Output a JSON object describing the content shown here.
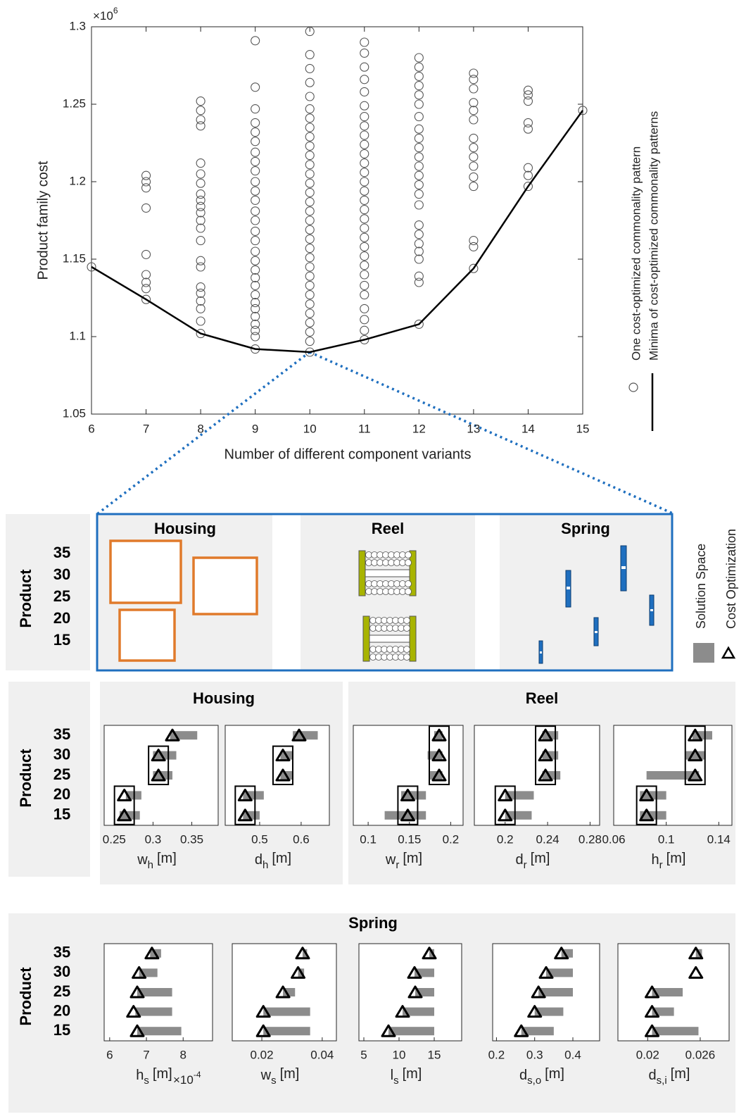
{
  "chart_data": {
    "type": "scatter",
    "x_label": "Number of different component variants",
    "y_label": "Product family cost",
    "y_scale_label": "×10",
    "y_scale_exponent": "6",
    "xlim": [
      6,
      15
    ],
    "xticks": [
      6,
      7,
      8,
      9,
      10,
      11,
      12,
      13,
      14,
      15
    ],
    "ylim": [
      1.05,
      1.3
    ],
    "yticks": [
      1.05,
      1.1,
      1.15,
      1.2,
      1.25,
      1.3
    ],
    "series": [
      {
        "name": "One cost-optimized commonality pattern",
        "type": "scatter",
        "color": "#555555",
        "x": [
          6,
          7,
          7,
          7,
          7,
          7,
          7,
          7,
          7,
          7,
          8,
          8,
          8,
          8,
          8,
          8,
          8,
          8,
          8,
          8,
          8,
          8,
          8,
          8,
          8,
          8,
          8,
          8,
          8,
          8,
          8,
          8,
          9,
          9,
          9,
          9,
          9,
          9,
          9,
          9,
          9,
          9,
          9,
          9,
          9,
          9,
          9,
          9,
          9,
          9,
          9,
          9,
          9,
          9,
          9,
          9,
          9,
          9,
          9,
          9,
          9,
          10,
          10,
          10,
          10,
          10,
          10,
          10,
          10,
          10,
          10,
          10,
          10,
          10,
          10,
          10,
          10,
          10,
          10,
          10,
          10,
          10,
          10,
          10,
          10,
          10,
          10,
          10,
          10,
          10,
          10,
          10,
          10,
          11,
          11,
          11,
          11,
          11,
          11,
          11,
          11,
          11,
          11,
          11,
          11,
          11,
          11,
          11,
          11,
          11,
          11,
          11,
          11,
          11,
          11,
          11,
          11,
          11,
          11,
          11,
          11,
          11,
          11,
          12,
          12,
          12,
          12,
          12,
          12,
          12,
          12,
          12,
          12,
          12,
          12,
          12,
          12,
          12,
          12,
          12,
          12,
          12,
          12,
          12,
          12,
          12,
          12,
          13,
          13,
          13,
          13,
          13,
          13,
          13,
          13,
          13,
          13,
          13,
          13,
          13,
          13,
          13,
          14,
          14,
          14,
          14,
          14,
          14,
          14,
          14,
          15
        ],
        "values": [
          1.145,
          1.124,
          1.131,
          1.135,
          1.14,
          1.153,
          1.183,
          1.196,
          1.2,
          1.204,
          1.102,
          1.11,
          1.118,
          1.123,
          1.128,
          1.132,
          1.145,
          1.149,
          1.162,
          1.17,
          1.175,
          1.18,
          1.184,
          1.188,
          1.192,
          1.199,
          1.205,
          1.212,
          1.236,
          1.24,
          1.246,
          1.252,
          1.092,
          1.1,
          1.104,
          1.108,
          1.113,
          1.118,
          1.122,
          1.127,
          1.133,
          1.138,
          1.143,
          1.149,
          1.155,
          1.162,
          1.168,
          1.175,
          1.181,
          1.188,
          1.194,
          1.2,
          1.207,
          1.213,
          1.219,
          1.226,
          1.232,
          1.238,
          1.247,
          1.261,
          1.291,
          1.09,
          1.097,
          1.103,
          1.109,
          1.115,
          1.121,
          1.127,
          1.133,
          1.139,
          1.145,
          1.151,
          1.157,
          1.163,
          1.169,
          1.175,
          1.181,
          1.187,
          1.193,
          1.199,
          1.205,
          1.211,
          1.217,
          1.223,
          1.229,
          1.235,
          1.241,
          1.247,
          1.255,
          1.264,
          1.273,
          1.282,
          1.297,
          1.098,
          1.104,
          1.111,
          1.118,
          1.127,
          1.133,
          1.14,
          1.146,
          1.152,
          1.158,
          1.164,
          1.17,
          1.176,
          1.182,
          1.188,
          1.194,
          1.2,
          1.206,
          1.212,
          1.218,
          1.224,
          1.23,
          1.236,
          1.242,
          1.249,
          1.258,
          1.266,
          1.274,
          1.283,
          1.29,
          1.108,
          1.135,
          1.139,
          1.15,
          1.155,
          1.16,
          1.166,
          1.172,
          1.185,
          1.192,
          1.198,
          1.204,
          1.21,
          1.216,
          1.222,
          1.228,
          1.234,
          1.242,
          1.25,
          1.256,
          1.262,
          1.268,
          1.274,
          1.28,
          1.144,
          1.158,
          1.162,
          1.197,
          1.203,
          1.21,
          1.216,
          1.222,
          1.228,
          1.24,
          1.246,
          1.251,
          1.26,
          1.266,
          1.27,
          1.197,
          1.204,
          1.209,
          1.234,
          1.238,
          1.252,
          1.256,
          1.259,
          1.246
        ]
      },
      {
        "name": "Minima of cost-optimized commonality patterns",
        "type": "line",
        "color": "#000000",
        "x": [
          6,
          7,
          8,
          9,
          10,
          11,
          12,
          13,
          14,
          15
        ],
        "values": [
          1.145,
          1.124,
          1.102,
          1.092,
          1.09,
          1.098,
          1.108,
          1.144,
          1.197,
          1.246
        ]
      }
    ]
  },
  "diagram": {
    "y_label": "Product",
    "categories": [
      15,
      20,
      25,
      30,
      35
    ],
    "components": [
      "Housing",
      "Reel",
      "Spring"
    ]
  },
  "range_legend": [
    {
      "name": "Solution Space",
      "color": "#8c8c8c"
    },
    {
      "name": "Cost Optimization",
      "marker": "triangle"
    }
  ],
  "rows": [
    {
      "y_label": "Product",
      "categories": [
        15,
        20,
        25,
        30,
        35
      ],
      "groups": [
        {
          "title": "Housing",
          "charts": [
            {
              "type": "range",
              "x_label": "w",
              "x_label_subscript": "h",
              "x_label_unit": "[m]",
              "xlim": [
                0.237,
                0.384
              ],
              "xticks": [
                0.25,
                0.3,
                0.35
              ],
              "commonality_boxes": true,
              "values": [
                0.263,
                0.263,
                0.307,
                0.307,
                0.325
              ],
              "ranges": [
                [
                  0.257,
                  0.283
                ],
                [
                  0.265,
                  0.285
                ],
                [
                  0.3,
                  0.325
                ],
                [
                  0.3,
                  0.33
                ],
                [
                  0.322,
                  0.357
                ]
              ]
            },
            {
              "type": "range",
              "x_label": "d",
              "x_label_subscript": "h",
              "x_label_unit": "[m]",
              "xlim": [
                0.417,
                0.668
              ],
              "xticks": [
                0.5,
                0.6
              ],
              "commonality_boxes": true,
              "values": [
                0.465,
                0.465,
                0.556,
                0.556,
                0.595
              ],
              "ranges": [
                [
                  0.46,
                  0.5
                ],
                [
                  0.46,
                  0.51
                ],
                [
                  0.55,
                  0.58
                ],
                [
                  0.55,
                  0.58
                ],
                [
                  0.58,
                  0.64
                ]
              ]
            }
          ]
        },
        {
          "title": "Reel",
          "charts": [
            {
              "type": "range",
              "x_label": "w",
              "x_label_subscript": "r",
              "x_label_unit": "[m]",
              "xlim": [
                0.082,
                0.215
              ],
              "xticks": [
                0.1,
                0.15,
                0.2
              ],
              "commonality_boxes": true,
              "values": [
                0.148,
                0.148,
                0.186,
                0.186,
                0.186
              ],
              "ranges": [
                [
                  0.12,
                  0.17
                ],
                [
                  0.14,
                  0.17
                ],
                [
                  0.175,
                  0.19
                ],
                [
                  0.172,
                  0.19
                ],
                [
                  0.18,
                  0.19
                ]
              ]
            },
            {
              "type": "range",
              "x_label": "d",
              "x_label_subscript": "r",
              "x_label_unit": "[m]",
              "xlim": [
                0.171,
                0.289
              ],
              "xticks": [
                0.2,
                0.24,
                0.28
              ],
              "commonality_boxes": true,
              "values": [
                0.2,
                0.2,
                0.238,
                0.238,
                0.238
              ],
              "ranges": [
                [
                  0.2,
                  0.225
                ],
                [
                  0.2,
                  0.227
                ],
                [
                  0.235,
                  0.252
                ],
                [
                  0.235,
                  0.25
                ],
                [
                  0.235,
                  0.25
                ]
              ]
            },
            {
              "type": "range",
              "x_label": "h",
              "x_label_subscript": "r",
              "x_label_unit": "[m]",
              "xlim": [
                0.06,
                0.15
              ],
              "xticks": [
                0.06,
                0.1,
                0.14
              ],
              "commonality_boxes": true,
              "values": [
                0.085,
                0.085,
                0.122,
                0.122,
                0.122
              ],
              "ranges": [
                [
                  0.08,
                  0.1
                ],
                [
                  0.08,
                  0.1
                ],
                [
                  0.085,
                  0.125
                ],
                [
                  0.115,
                  0.13
                ],
                [
                  0.12,
                  0.135
                ]
              ]
            }
          ]
        }
      ]
    },
    {
      "y_label": "Product",
      "categories": [
        15,
        20,
        25,
        30,
        35
      ],
      "groups": [
        {
          "title": "Spring",
          "charts": [
            {
              "type": "range",
              "x_label": "h",
              "x_label_subscript": "s",
              "x_label_unit": "[m]",
              "x_scale_label": "×10",
              "x_scale_exponent": "-4",
              "xlim": [
                5.85,
                8.8
              ],
              "xticks": [
                6,
                7,
                8
              ],
              "commonality_boxes": false,
              "values": [
                6.75,
                6.65,
                6.75,
                6.8,
                7.15
              ],
              "ranges": [
                [
                  6.75,
                  7.95
                ],
                [
                  6.7,
                  7.7
                ],
                [
                  6.75,
                  7.7
                ],
                [
                  6.8,
                  7.3
                ],
                [
                  7.1,
                  7.4
                ]
              ]
            },
            {
              "type": "range",
              "x_label": "w",
              "x_label_subscript": "s",
              "x_label_unit": "[m]",
              "xlim": [
                0.0102,
                0.0447
              ],
              "xticks": [
                0.02,
                0.04
              ],
              "commonality_boxes": false,
              "values": [
                0.0205,
                0.0205,
                0.027,
                0.032,
                0.0335
              ],
              "ranges": [
                [
                  0.0205,
                  0.036
                ],
                [
                  0.0205,
                  0.036
                ],
                [
                  0.027,
                  0.031
                ],
                [
                  0.032,
                  0.034
                ],
                [
                  0.0335,
                  0.035
                ]
              ]
            },
            {
              "type": "range",
              "x_label": "l",
              "x_label_subscript": "s",
              "x_label_unit": "[m]",
              "xlim": [
                4.3,
                18.9
              ],
              "xticks": [
                5,
                10,
                15
              ],
              "commonality_boxes": false,
              "values": [
                8.5,
                10.5,
                12.3,
                12.2,
                14.3
              ],
              "ranges": [
                [
                  8.5,
                  15
                ],
                [
                  10.5,
                  15
                ],
                [
                  12.3,
                  15
                ],
                [
                  12.2,
                  15
                ],
                [
                  14.3,
                  15
                ]
              ]
            },
            {
              "type": "range",
              "x_label": "d",
              "x_label_subscript": "s,o",
              "x_label_unit": "[m]",
              "xlim": [
                0.19,
                0.47
              ],
              "xticks": [
                0.2,
                0.3,
                0.4
              ],
              "commonality_boxes": false,
              "values": [
                0.265,
                0.3,
                0.31,
                0.33,
                0.37
              ],
              "ranges": [
                [
                  0.265,
                  0.35
                ],
                [
                  0.3,
                  0.375
                ],
                [
                  0.31,
                  0.4
                ],
                [
                  0.33,
                  0.4
                ],
                [
                  0.37,
                  0.4
                ]
              ]
            },
            {
              "type": "range",
              "x_label": "d",
              "x_label_subscript": "s,i",
              "x_label_unit": "[m]",
              "xlim": [
                0.0166,
                0.0293
              ],
              "xticks": [
                0.02,
                0.026
              ],
              "commonality_boxes": false,
              "values": [
                0.0205,
                0.0205,
                0.0205,
                0.0255,
                0.0255
              ],
              "ranges": [
                [
                  0.0205,
                  0.0258
                ],
                [
                  0.0205,
                  0.023
                ],
                [
                  0.0205,
                  0.024
                ],
                null,
                [
                  0.0255,
                  0.0262
                ]
              ]
            }
          ]
        }
      ]
    }
  ]
}
